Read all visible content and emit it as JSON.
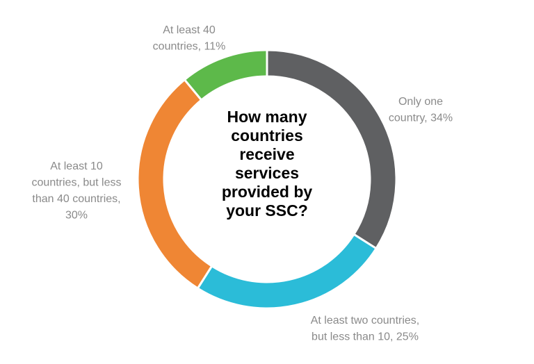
{
  "chart_data": {
    "type": "donut",
    "title": "How many countries receive services provided by your SSC?",
    "values": [
      34,
      25,
      30,
      11
    ],
    "value_labels": [
      [
        "Only one",
        "country, 34%"
      ],
      [
        "At least two countries,",
        "but less than 10, 25%"
      ],
      [
        "At least 10",
        "countries, but less",
        "than 40 countries,",
        "30%"
      ],
      [
        "At least 40",
        "countries, 11%"
      ]
    ],
    "colors": [
      "#5f6062",
      "#2bbcd8",
      "#ef8634",
      "#5db94a"
    ]
  }
}
